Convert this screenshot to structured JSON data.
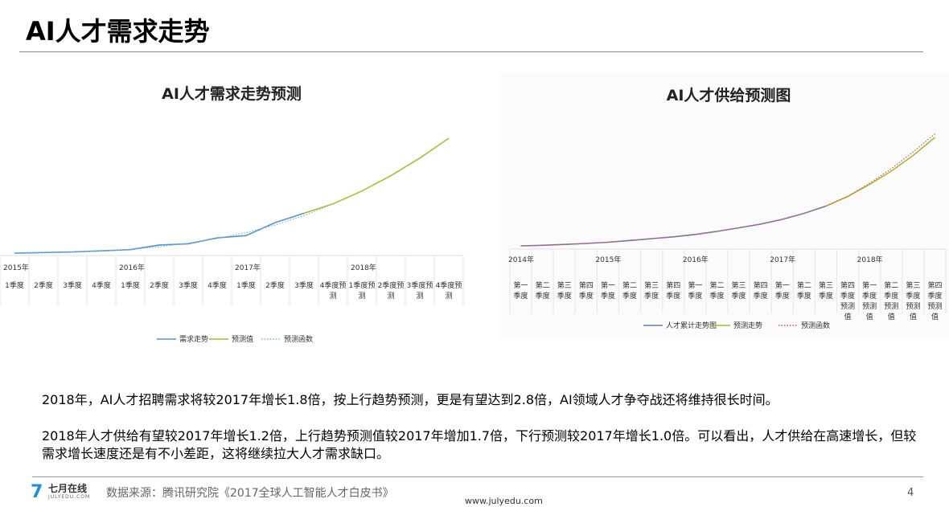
{
  "slide": {
    "title": "AI人才需求走势",
    "paragraph1": "2018年，AI人才招聘需求将较2017年增长1.8倍，按上行趋势预测，更是有望达到2.8倍，AI领域人才争夺战还将维持很长时间。",
    "paragraph2": "2018年人才供给有望较2017年增长1.2倍，上行趋势预测值较2017年增加1.7倍，下行预测较2017年增长1.0倍。可以看出，人才供给在高速增长，但较需求增长速度还是有不小差距，这将继续拉大人才需求缺口。",
    "footer": {
      "logo_mark": "7",
      "logo_name": "七月在线",
      "logo_sub": "JULYEDU.COM",
      "source": "数据来源：腾讯研究院《2017全球人工智能人才白皮书》",
      "page_number": "4",
      "website": "www.julyedu.com"
    }
  },
  "colors": {
    "blue": "#5a93c2",
    "green": "#9ec13a",
    "dotted": "#7fb3d6",
    "purple_blue": "#6a7fb0",
    "olive": "#a9b936",
    "red_dotted": "#d9534f"
  },
  "chart_data": [
    {
      "type": "line",
      "title": "AI人才需求走势预测",
      "x_labels": [
        {
          "year": "2015年",
          "quarter": "1季度"
        },
        {
          "year": "",
          "quarter": "2季度"
        },
        {
          "year": "",
          "quarter": "3季度"
        },
        {
          "year": "",
          "quarter": "4季度"
        },
        {
          "year": "2016年",
          "quarter": "1季度"
        },
        {
          "year": "",
          "quarter": "2季度"
        },
        {
          "year": "",
          "quarter": "3季度"
        },
        {
          "year": "",
          "quarter": "4季度"
        },
        {
          "year": "2017年",
          "quarter": "1季度"
        },
        {
          "year": "",
          "quarter": "2季度"
        },
        {
          "year": "",
          "quarter": "3季度"
        },
        {
          "year": "",
          "quarter": "4季度预测"
        },
        {
          "year": "2018年",
          "quarter": "1季度预测"
        },
        {
          "year": "",
          "quarter": "2季度预测"
        },
        {
          "year": "",
          "quarter": "3季度预测"
        },
        {
          "year": "",
          "quarter": "4季度预测"
        }
      ],
      "ylim": [
        0,
        100
      ],
      "series": [
        {
          "name": "需求走势",
          "color": "#5a93c2",
          "style": "solid",
          "values": [
            2,
            2.5,
            3,
            4,
            5,
            9,
            10,
            15,
            17,
            28,
            36,
            null,
            null,
            null,
            null,
            null
          ]
        },
        {
          "name": "预测值",
          "color": "#9ec13a",
          "style": "solid",
          "values": [
            null,
            null,
            null,
            null,
            null,
            null,
            null,
            null,
            null,
            null,
            null,
            44,
            55,
            68,
            83,
            100
          ]
        },
        {
          "name": "预测函数",
          "color": "#7fb3d6",
          "style": "dotted",
          "values": [
            2,
            2.3,
            3,
            3.8,
            5.2,
            7.5,
            10.5,
            14.5,
            19.5,
            26,
            34,
            44,
            null,
            null,
            null,
            null
          ]
        }
      ],
      "grid": true,
      "legend": "bottom"
    },
    {
      "type": "line",
      "title": "AI人才供给预测图",
      "x_labels": [
        {
          "year": "2014年",
          "quarter": "第一季度"
        },
        {
          "year": "",
          "quarter": "第二季度"
        },
        {
          "year": "",
          "quarter": "第三季度"
        },
        {
          "year": "",
          "quarter": "第四季度"
        },
        {
          "year": "2015年",
          "quarter": "第一季度"
        },
        {
          "year": "",
          "quarter": "第二季度"
        },
        {
          "year": "",
          "quarter": "第三季度"
        },
        {
          "year": "",
          "quarter": "第四季度"
        },
        {
          "year": "2016年",
          "quarter": "第一季度"
        },
        {
          "year": "",
          "quarter": "第二季度"
        },
        {
          "year": "",
          "quarter": "第三季度"
        },
        {
          "year": "",
          "quarter": "第四季度"
        },
        {
          "year": "2017年",
          "quarter": "第一季度"
        },
        {
          "year": "",
          "quarter": "第二季度"
        },
        {
          "year": "",
          "quarter": "第三季度"
        },
        {
          "year": "",
          "quarter": "第四季度预测值"
        },
        {
          "year": "2018年",
          "quarter": "第一季度预测值"
        },
        {
          "year": "",
          "quarter": "第二季度预测值"
        },
        {
          "year": "",
          "quarter": "第三季度预测值"
        },
        {
          "year": "",
          "quarter": "第四季度预测值"
        }
      ],
      "ylim": [
        0,
        100
      ],
      "series": [
        {
          "name": "人才累计走势图",
          "color": "#6a7fb0",
          "style": "solid",
          "values": [
            0,
            0.5,
            1.2,
            2,
            3,
            4.5,
            6,
            7.5,
            9.5,
            12,
            15,
            18,
            22,
            27,
            33,
            null,
            null,
            null,
            null,
            null
          ]
        },
        {
          "name": "预测走势",
          "color": "#a9b936",
          "style": "solid",
          "values": [
            null,
            null,
            null,
            null,
            null,
            null,
            null,
            null,
            null,
            null,
            null,
            null,
            null,
            null,
            null,
            41,
            51,
            62,
            75,
            90
          ]
        },
        {
          "name": "预测函数",
          "color": "#d9534f",
          "style": "dotted",
          "values": [
            0,
            0.5,
            1.1,
            2,
            3,
            4.3,
            5.9,
            7.6,
            9.6,
            12,
            14.9,
            18.3,
            22.2,
            27,
            33,
            41,
            52,
            64,
            78,
            93
          ]
        }
      ],
      "grid": true,
      "legend": "bottom"
    }
  ]
}
